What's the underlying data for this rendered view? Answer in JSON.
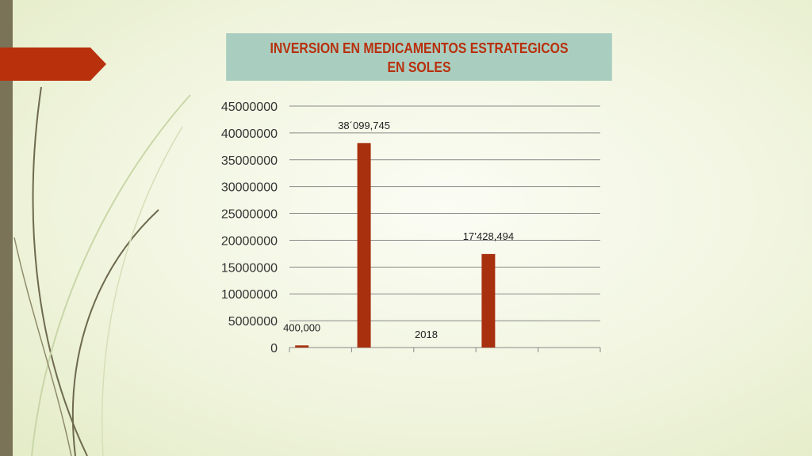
{
  "slide": {
    "colors": {
      "accent": "#b8300c",
      "title_bg": "#a9cec0",
      "side_bar": "#7a7358",
      "bar": "#a8300f"
    }
  },
  "chart_data": {
    "type": "bar",
    "title_lines": [
      "INVERSION EN MEDICAMENTOS ESTRATEGICOS",
      "EN SOLES"
    ],
    "categories": [
      "",
      "",
      "",
      "",
      ""
    ],
    "values": [
      400000,
      38099745,
      null,
      17428494,
      null
    ],
    "data_labels": [
      "400,000",
      "38´099,745",
      "2018",
      "17’428,494",
      ""
    ],
    "yticks": [
      "45000000",
      "40000000",
      "35000000",
      "30000000",
      "25000000",
      "20000000",
      "15000000",
      "10000000",
      "5000000",
      "0"
    ],
    "ylim": [
      0,
      45000000
    ],
    "grid": true,
    "legend": "none",
    "bar_color": "#a8300f"
  }
}
